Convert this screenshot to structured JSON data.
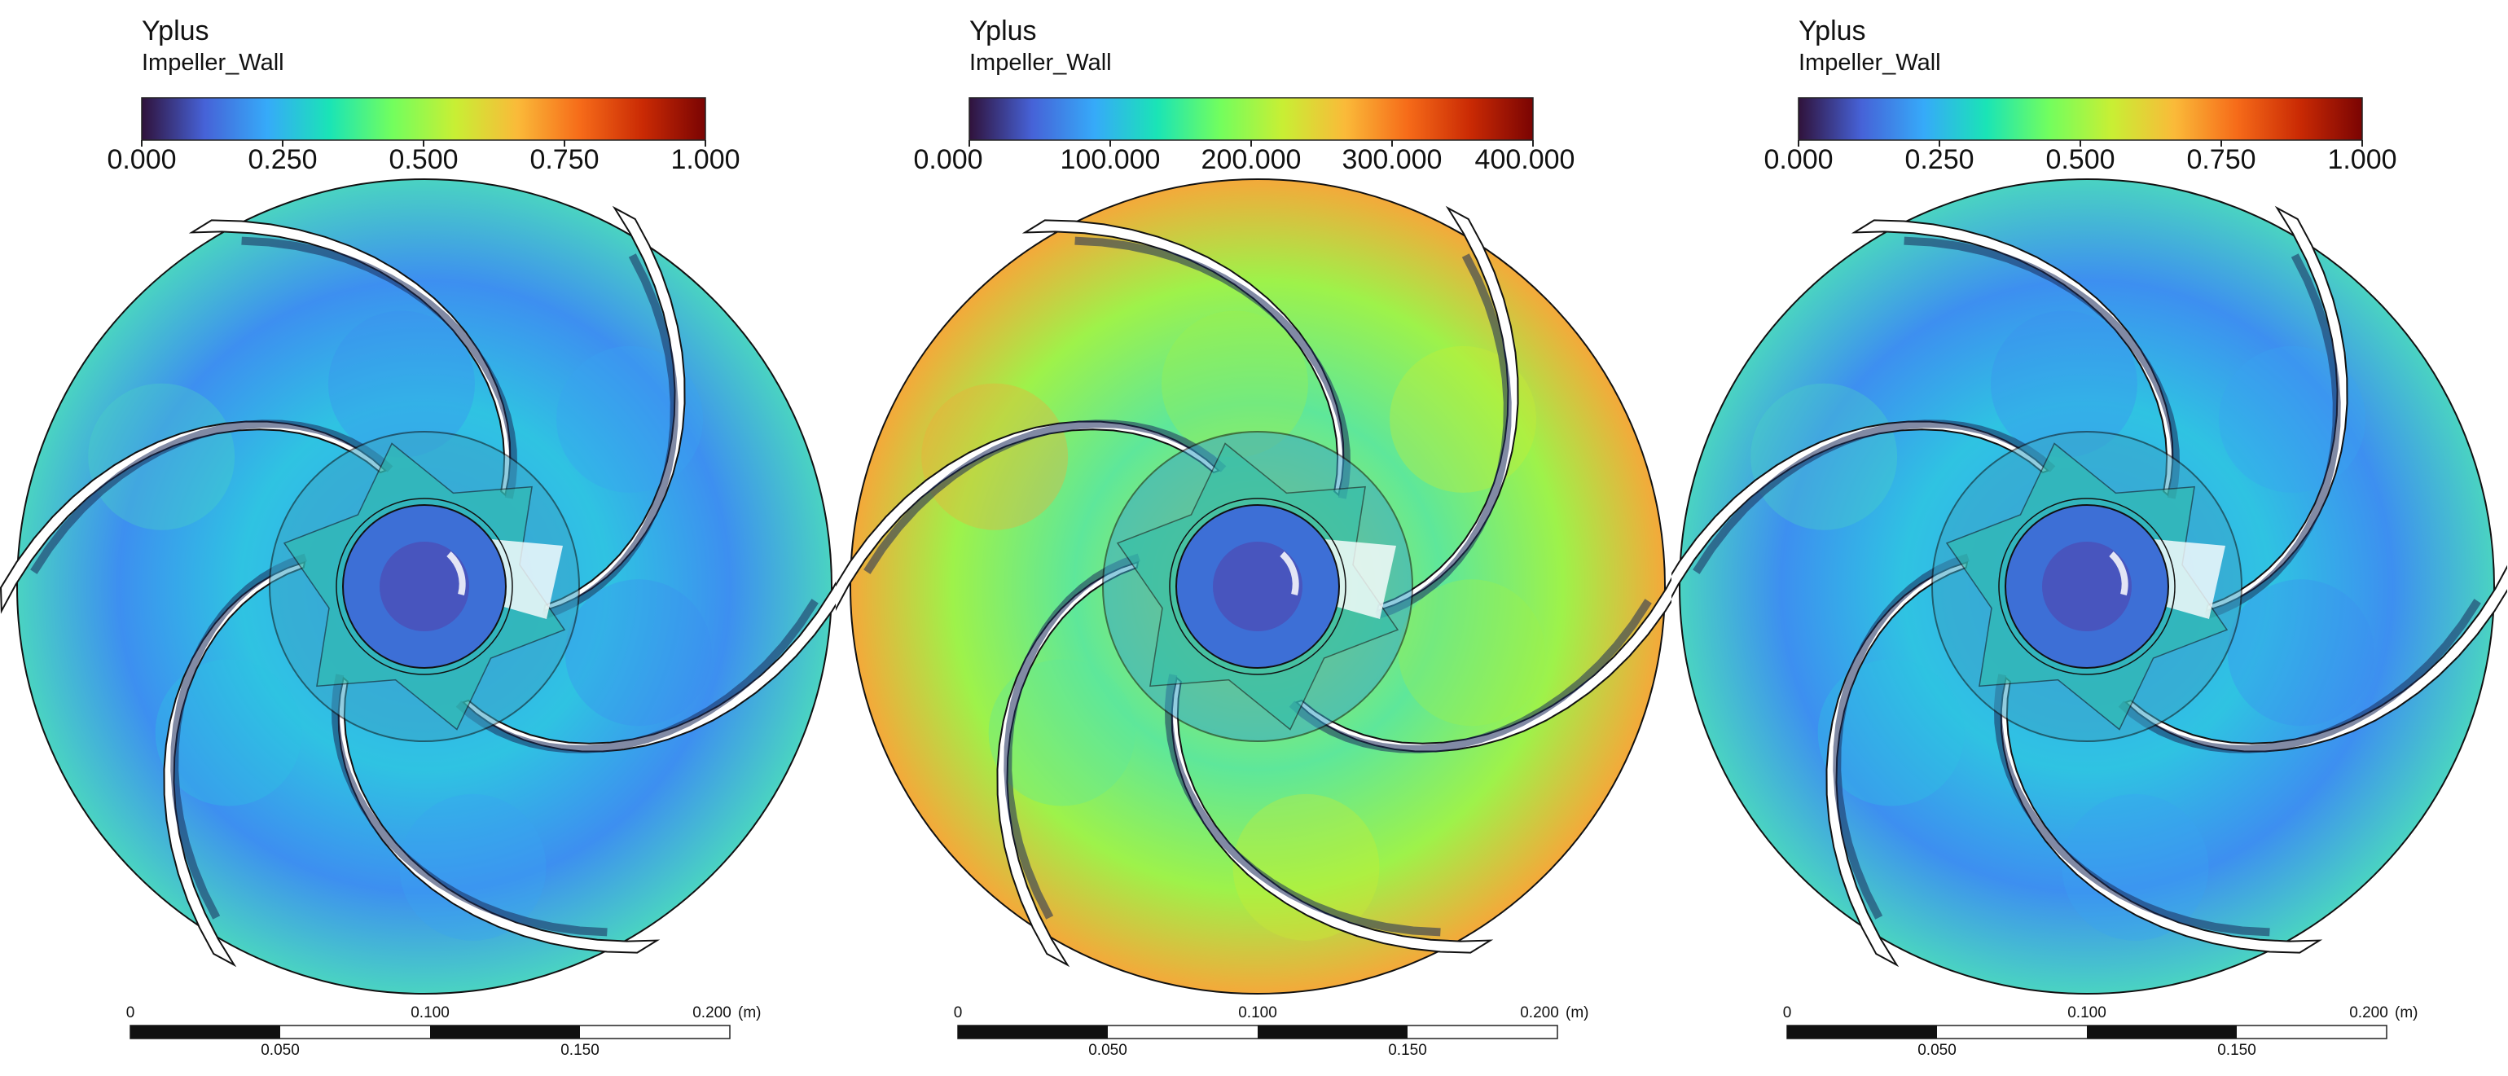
{
  "colormap": [
    "#30123b",
    "#4662d7",
    "#36aaf9",
    "#1ae4b6",
    "#72fe5e",
    "#c8ef34",
    "#faba39",
    "#f66b19",
    "#ca2a04",
    "#7a0403"
  ],
  "panels": [
    {
      "variable": "Yplus",
      "location": "Impeller_Wall",
      "colorbar_ticks": [
        "0.000",
        "0.250",
        "0.500",
        "0.750",
        "1.000"
      ],
      "scale_top": [
        "0",
        "0.100",
        "0.200"
      ],
      "scale_bottom": [
        "0.050",
        "0.150"
      ],
      "scale_unit": "(m)",
      "field_colors": [
        "#3d8ff0",
        "#3aa2f2",
        "#2fc3e2",
        "#4ad3c2"
      ]
    },
    {
      "variable": "Yplus",
      "location": "Impeller_Wall",
      "colorbar_ticks": [
        "0.000",
        "100.000",
        "200.000",
        "300.000",
        "400.000"
      ],
      "scale_top": [
        "0",
        "0.100",
        "0.200"
      ],
      "scale_bottom": [
        "0.050",
        "0.150"
      ],
      "scale_unit": "(m)",
      "field_colors": [
        "#9ef24a",
        "#c8ef34",
        "#5ee79a",
        "#f4a93a"
      ]
    },
    {
      "variable": "Yplus",
      "location": "Impeller_Wall",
      "colorbar_ticks": [
        "0.000",
        "0.250",
        "0.500",
        "0.750",
        "1.000"
      ],
      "scale_top": [
        "0",
        "0.100",
        "0.200"
      ],
      "scale_bottom": [
        "0.050",
        "0.150"
      ],
      "scale_unit": "(m)",
      "field_colors": [
        "#3d8ff0",
        "#3aa2f2",
        "#2fc3e2",
        "#4ad3c2"
      ]
    }
  ]
}
